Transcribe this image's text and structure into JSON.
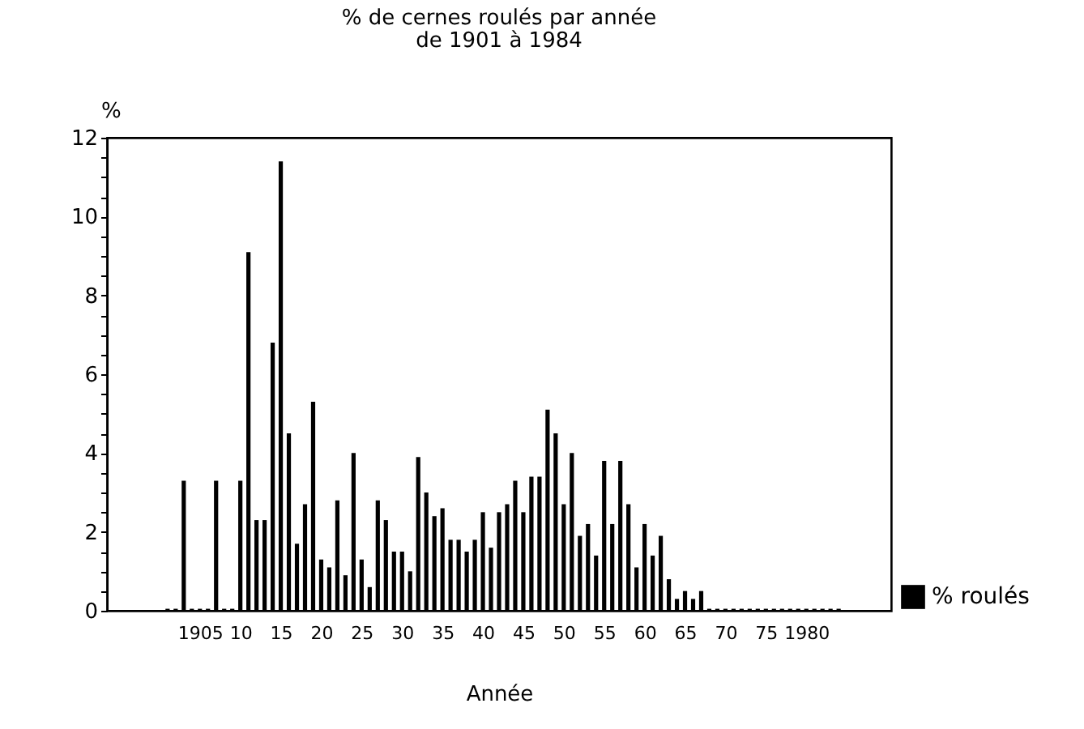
{
  "chart_data": {
    "type": "bar",
    "title": "% de cernes roulés par année\nde 1901 à 1984",
    "xlabel": "Année",
    "ylabel": "%",
    "x": [
      1901,
      1902,
      1903,
      1904,
      1905,
      1906,
      1907,
      1908,
      1909,
      1910,
      1911,
      1912,
      1913,
      1914,
      1915,
      1916,
      1917,
      1918,
      1919,
      1920,
      1921,
      1922,
      1923,
      1924,
      1925,
      1926,
      1927,
      1928,
      1929,
      1930,
      1931,
      1932,
      1933,
      1934,
      1935,
      1936,
      1937,
      1938,
      1939,
      1940,
      1941,
      1942,
      1943,
      1944,
      1945,
      1946,
      1947,
      1948,
      1949,
      1950,
      1951,
      1952,
      1953,
      1954,
      1955,
      1956,
      1957,
      1958,
      1959,
      1960,
      1961,
      1962,
      1963,
      1964,
      1965,
      1966,
      1967,
      1968,
      1969,
      1970,
      1971,
      1972,
      1973,
      1974,
      1975,
      1976,
      1977,
      1978,
      1979,
      1980,
      1981,
      1982,
      1983,
      1984
    ],
    "series": [
      {
        "name": "% roulés",
        "color": "#000000",
        "values": [
          0.05,
          0.05,
          3.3,
          0.05,
          0.05,
          0.05,
          3.3,
          0.05,
          0.05,
          3.3,
          9.1,
          2.3,
          2.3,
          6.8,
          11.4,
          4.5,
          1.7,
          2.7,
          5.3,
          1.3,
          1.1,
          2.8,
          0.9,
          4.0,
          1.3,
          0.6,
          2.8,
          2.3,
          1.5,
          1.5,
          1.0,
          3.9,
          3.0,
          2.4,
          2.6,
          1.8,
          1.8,
          1.5,
          1.8,
          2.5,
          1.6,
          2.5,
          2.7,
          3.3,
          2.5,
          3.4,
          3.4,
          5.1,
          4.5,
          2.7,
          4.0,
          1.9,
          2.2,
          1.4,
          3.8,
          2.2,
          3.8,
          2.7,
          1.1,
          2.2,
          1.4,
          1.9,
          0.8,
          0.3,
          0.5,
          0.3,
          0.5,
          0.05,
          0.05,
          0.05,
          0.05,
          0.05,
          0.05,
          0.05,
          0.05,
          0.05,
          0.05,
          0.05,
          0.05,
          0.05,
          0.05,
          0.05,
          0.05,
          0.05
        ]
      }
    ],
    "xlim": [
      1893.5,
      1990.5
    ],
    "xticks": [
      {
        "value": 1905,
        "label": "1905"
      },
      {
        "value": 1910,
        "label": "10"
      },
      {
        "value": 1915,
        "label": "15"
      },
      {
        "value": 1920,
        "label": "20"
      },
      {
        "value": 1925,
        "label": "25"
      },
      {
        "value": 1930,
        "label": "30"
      },
      {
        "value": 1935,
        "label": "35"
      },
      {
        "value": 1940,
        "label": "40"
      },
      {
        "value": 1945,
        "label": "45"
      },
      {
        "value": 1950,
        "label": "50"
      },
      {
        "value": 1955,
        "label": "55"
      },
      {
        "value": 1960,
        "label": "60"
      },
      {
        "value": 1965,
        "label": "65"
      },
      {
        "value": 1970,
        "label": "70"
      },
      {
        "value": 1975,
        "label": "75"
      },
      {
        "value": 1980,
        "label": "1980"
      }
    ],
    "ylim": [
      0,
      12
    ],
    "yticks": [
      0,
      {
        "value": 0.5,
        "label": null
      },
      {
        "value": 1,
        "label": null
      },
      {
        "value": 1.5,
        "label": null
      },
      2,
      {
        "value": 2.5,
        "label": null
      },
      {
        "value": 3,
        "label": null
      },
      {
        "value": 3.5,
        "label": null
      },
      4,
      {
        "value": 4.5,
        "label": null
      },
      {
        "value": 5,
        "label": null
      },
      {
        "value": 5.5,
        "label": null
      },
      6,
      {
        "value": 6.5,
        "label": null
      },
      {
        "value": 7,
        "label": null
      },
      {
        "value": 7.5,
        "label": null
      },
      8,
      {
        "value": 8.5,
        "label": null
      },
      {
        "value": 9,
        "label": null
      },
      {
        "value": 9.5,
        "label": null
      },
      10,
      {
        "value": 10.5,
        "label": null
      },
      {
        "value": 11,
        "label": null
      },
      {
        "value": 11.5,
        "label": null
      },
      12
    ],
    "grid": false,
    "legend": "bottom right"
  }
}
